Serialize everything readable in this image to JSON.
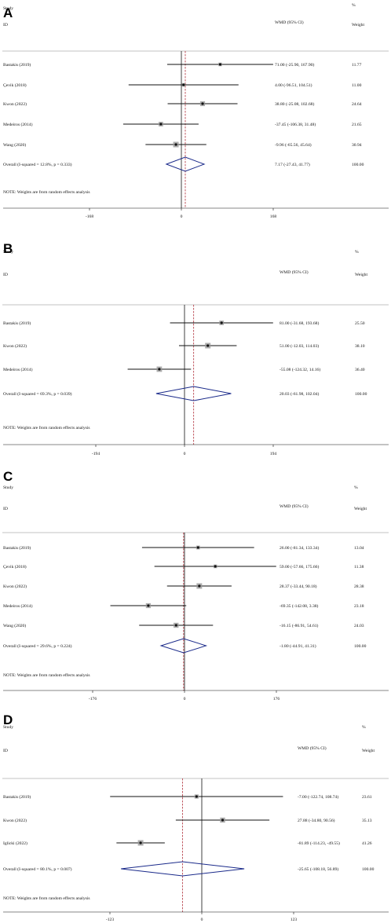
{
  "chart_data": [
    {
      "type": "forest",
      "panel_label": "A",
      "header": {
        "study": "Study",
        "id": "ID",
        "effect": "WMD (95% CI)",
        "pct": "%",
        "weight": "Weight"
      },
      "xlim": [
        -168,
        168
      ],
      "ticks": [
        "-168",
        "0",
        "168"
      ],
      "tick_values": [
        -168,
        0,
        168
      ],
      "studies": [
        {
          "name": "Bastakis (2019)",
          "est": 71.0,
          "lo": -25.9,
          "hi": 167.9,
          "ci": "71.00 (-25.90, 167.90)",
          "weight": "11.77",
          "w": 11.77
        },
        {
          "name": "Çevik (2018)",
          "est": 4.0,
          "lo": -96.51,
          "hi": 104.51,
          "ci": "4.00 (-96.51, 104.51)",
          "weight": "11.00",
          "w": 11.0
        },
        {
          "name": "Kwon (2022)",
          "est": 38.8,
          "lo": -25.08,
          "hi": 102.68,
          "ci": "38.80 (-25.08, 102.68)",
          "weight": "24.64",
          "w": 24.64
        },
        {
          "name": "Medeiros (2014)",
          "est": -37.45,
          "lo": -106.38,
          "hi": 31.48,
          "ci": "-37.45 (-106.38, 31.48)",
          "weight": "21.65",
          "w": 21.65
        },
        {
          "name": "Wang (2020)",
          "est": -9.96,
          "lo": -65.56,
          "hi": 45.64,
          "ci": "-9.96 (-65.56, 45.64)",
          "weight": "30.94",
          "w": 30.94
        }
      ],
      "overall": {
        "label": "Overall (I-squared = 12.8%, p = 0.333)",
        "est": 7.17,
        "lo": -27.43,
        "hi": 41.77,
        "ci": "7.17 (-27.43, 41.77)",
        "weight": "100.00"
      },
      "note": "NOTE: Weights are from random effects analysis"
    },
    {
      "type": "forest",
      "panel_label": "B",
      "header": {
        "study": "Study",
        "id": "ID",
        "effect": "WMD (95% CI)",
        "pct": "%",
        "weight": "Weight"
      },
      "xlim": [
        -194,
        194
      ],
      "ticks": [
        "-194",
        "0",
        "194"
      ],
      "tick_values": [
        -194,
        0,
        194
      ],
      "studies": [
        {
          "name": "Bastakis (2019)",
          "est": 81.0,
          "lo": -31.68,
          "hi": 193.68,
          "ci": "81.00 (-31.68, 193.68)",
          "weight": "25.50",
          "w": 25.5
        },
        {
          "name": "Kwon (2022)",
          "est": 51.0,
          "lo": -12.03,
          "hi": 114.03,
          "ci": "51.00 (-12.03, 114.03)",
          "weight": "38.10",
          "w": 38.1
        },
        {
          "name": "Medeiros (2014)",
          "est": -55.08,
          "lo": -124.32,
          "hi": 14.16,
          "ci": "-55.08 (-124.32, 14.16)",
          "weight": "36.40",
          "w": 36.4
        }
      ],
      "overall": {
        "label": "Overall (I-squared = 69.3%, p = 0.039)",
        "est": 20.03,
        "lo": -61.98,
        "hi": 102.04,
        "ci": "20.03 (-61.98, 102.04)",
        "weight": "100.00"
      },
      "note": "NOTE: Weights are from random effects analysis"
    },
    {
      "type": "forest",
      "panel_label": "C",
      "header": {
        "study": "Study",
        "id": "ID",
        "effect": "WMD (95% CI)",
        "pct": "%",
        "weight": "Weight"
      },
      "xlim": [
        -176,
        176
      ],
      "ticks": [
        "-176",
        "0",
        "176"
      ],
      "tick_values": [
        -176,
        0,
        176
      ],
      "studies": [
        {
          "name": "Bastakis (2019)",
          "est": 26.0,
          "lo": -81.34,
          "hi": 133.34,
          "ci": "26.00 (-81.34, 133.34)",
          "weight": "13.04",
          "w": 13.04
        },
        {
          "name": "Çevik (2018)",
          "est": 59.0,
          "lo": -57.66,
          "hi": 175.66,
          "ci": "59.00 (-57.66, 175.66)",
          "weight": "11.38",
          "w": 11.38
        },
        {
          "name": "Kwon (2022)",
          "est": 28.37,
          "lo": -33.44,
          "hi": 90.18,
          "ci": "28.37 (-33.44, 90.18)",
          "weight": "28.38",
          "w": 28.38
        },
        {
          "name": "Medeiros (2014)",
          "est": -69.35,
          "lo": -142.08,
          "hi": 3.38,
          "ci": "-69.35 (-142.08, 3.38)",
          "weight": "23.18",
          "w": 23.18
        },
        {
          "name": "Wang (2020)",
          "est": -16.15,
          "lo": -86.91,
          "hi": 54.61,
          "ci": "-16.15 (-86.91, 54.61)",
          "weight": "24.03",
          "w": 24.03
        }
      ],
      "overall": {
        "label": "Overall (I-squared = 29.6%, p = 0.224)",
        "est": -1.8,
        "lo": -44.91,
        "hi": 41.31,
        "ci": "-1.80 (-44.91, 41.31)",
        "weight": "100.00"
      },
      "note": "NOTE: Weights are from random effects analysis"
    },
    {
      "type": "forest",
      "panel_label": "D",
      "header": {
        "study": "Study",
        "id": "ID",
        "effect": "WMD (95% CI)",
        "pct": "%",
        "weight": "Weight"
      },
      "xlim": [
        -123,
        123
      ],
      "ticks": [
        "-123",
        "0",
        "123"
      ],
      "tick_values": [
        -123,
        0,
        123
      ],
      "studies": [
        {
          "name": "Bastakis (2019)",
          "est": -7.0,
          "lo": -122.74,
          "hi": 108.74,
          "ci": "-7.00 (-122.74, 108.74)",
          "weight": "23.61",
          "w": 23.61
        },
        {
          "name": "Kwon (2022)",
          "est": 27.88,
          "lo": -34.8,
          "hi": 90.56,
          "ci": "27.88 (-34.80, 90.56)",
          "weight": "35.13",
          "w": 35.13
        },
        {
          "name": "Iglicki (2022)",
          "est": -81.89,
          "lo": -114.23,
          "hi": -49.55,
          "ci": "-81.89 (-114.23, -49.55)",
          "weight": "41.26",
          "w": 41.26
        }
      ],
      "overall": {
        "label": "Overall (I-squared = 80.1%, p = 0.007)",
        "est": -25.65,
        "lo": -108.18,
        "hi": 56.89,
        "ci": "-25.65 (-108.18, 56.89)",
        "weight": "100.00"
      },
      "note": "NOTE: Weights are from random effects analysis"
    }
  ],
  "colors": {
    "line": "#111111",
    "overall": "#1a2a8a",
    "reference": "#b0303a",
    "box": "#999999"
  }
}
